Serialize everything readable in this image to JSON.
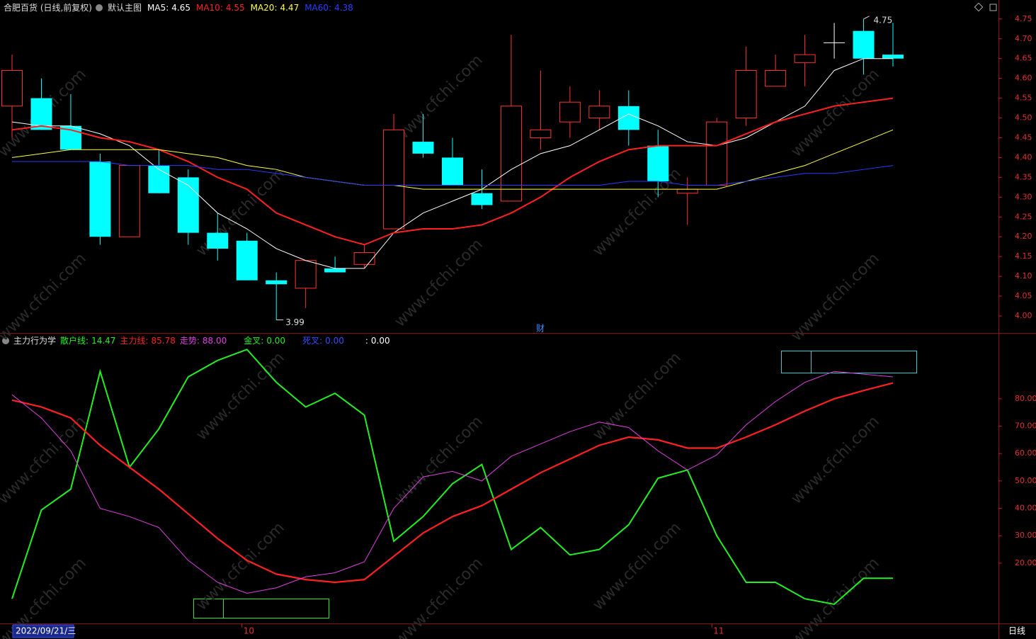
{
  "chart_data": [
    {
      "type": "candlestick",
      "title": "合肥百货 (日线,前复权)",
      "subtitle": "默认主图",
      "separator": ":",
      "annotation": "财",
      "up_color": "#ff3232",
      "down_color": "#00ffff",
      "flat_color": "#ffffff",
      "open": [
        4.53,
        4.55,
        4.48,
        4.39,
        4.2,
        4.38,
        4.35,
        4.21,
        4.19,
        4.09,
        4.07,
        4.12,
        4.13,
        4.22,
        4.44,
        4.4,
        4.31,
        4.29,
        4.45,
        4.49,
        4.5,
        4.53,
        4.43,
        4.31,
        4.33,
        4.5,
        4.58,
        4.64,
        4.69,
        4.72,
        4.66
      ],
      "high": [
        4.66,
        4.6,
        4.56,
        4.41,
        4.38,
        4.42,
        4.37,
        4.26,
        4.21,
        4.11,
        4.14,
        4.15,
        4.18,
        4.51,
        4.51,
        4.45,
        4.37,
        4.71,
        4.62,
        4.58,
        4.57,
        4.57,
        4.47,
        4.35,
        4.5,
        4.68,
        4.66,
        4.71,
        4.74,
        4.75,
        4.74
      ],
      "low": [
        4.45,
        4.47,
        4.42,
        4.18,
        4.2,
        4.31,
        4.18,
        4.14,
        4.09,
        3.99,
        4.02,
        4.11,
        4.12,
        4.22,
        4.4,
        4.33,
        4.27,
        4.29,
        4.42,
        4.45,
        4.47,
        4.43,
        4.3,
        4.23,
        4.33,
        4.48,
        4.58,
        4.58,
        4.65,
        4.61,
        4.63
      ],
      "close": [
        4.62,
        4.47,
        4.42,
        4.2,
        4.38,
        4.31,
        4.21,
        4.17,
        4.09,
        4.08,
        4.14,
        4.11,
        4.16,
        4.47,
        4.41,
        4.33,
        4.28,
        4.53,
        4.47,
        4.54,
        4.53,
        4.47,
        4.34,
        4.32,
        4.49,
        4.62,
        4.62,
        4.66,
        4.69,
        4.65,
        4.65
      ],
      "series": [
        {
          "name": "MA5",
          "color": "#ffffff",
          "last": 4.65,
          "values": [
            4.49,
            4.48,
            4.48,
            4.46,
            4.43,
            4.37,
            4.33,
            4.26,
            4.22,
            4.17,
            4.14,
            4.12,
            4.12,
            4.21,
            4.26,
            4.29,
            4.32,
            4.37,
            4.41,
            4.43,
            4.47,
            4.51,
            4.48,
            4.44,
            4.43,
            4.45,
            4.49,
            4.53,
            4.62,
            4.65,
            4.65
          ]
        },
        {
          "name": "MA10",
          "color": "#ff2020",
          "last": 4.55,
          "values": [
            4.47,
            4.48,
            4.47,
            4.45,
            4.44,
            4.42,
            4.39,
            4.35,
            4.32,
            4.26,
            4.23,
            4.2,
            4.18,
            4.21,
            4.22,
            4.22,
            4.23,
            4.26,
            4.3,
            4.35,
            4.39,
            4.42,
            4.43,
            4.43,
            4.43,
            4.46,
            4.49,
            4.51,
            4.53,
            4.54,
            4.55
          ]
        },
        {
          "name": "MA20",
          "color": "#ffff40",
          "last": 4.47,
          "values": [
            4.4,
            4.41,
            4.42,
            4.42,
            4.42,
            4.42,
            4.41,
            4.4,
            4.38,
            4.37,
            4.35,
            4.34,
            4.33,
            4.33,
            4.32,
            4.32,
            4.32,
            4.32,
            4.32,
            4.32,
            4.32,
            4.32,
            4.32,
            4.32,
            4.32,
            4.34,
            4.36,
            4.38,
            4.41,
            4.44,
            4.47
          ]
        },
        {
          "name": "MA60",
          "color": "#2a3cff",
          "last": 4.38,
          "values": [
            4.39,
            4.39,
            4.39,
            4.39,
            4.38,
            4.38,
            4.38,
            4.37,
            4.37,
            4.36,
            4.35,
            4.34,
            4.33,
            4.33,
            4.33,
            4.33,
            4.33,
            4.33,
            4.33,
            4.33,
            4.33,
            4.34,
            4.34,
            4.33,
            4.33,
            4.34,
            4.35,
            4.36,
            4.36,
            4.37,
            4.38
          ]
        }
      ],
      "ylim": [
        3.957,
        4.798
      ],
      "yticks": [
        {
          "value": 4.0,
          "label": "4.00"
        },
        {
          "value": 4.05,
          "label": "4.05"
        },
        {
          "value": 4.1,
          "label": "4.10"
        },
        {
          "value": 4.15,
          "label": "4.15"
        },
        {
          "value": 4.2,
          "label": "4.20"
        },
        {
          "value": 4.25,
          "label": "4.25"
        },
        {
          "value": 4.3,
          "label": "4.30"
        },
        {
          "value": 4.35,
          "label": "4.35"
        },
        {
          "value": 4.4,
          "label": "4.40"
        },
        {
          "value": 4.45,
          "label": "4.45"
        },
        {
          "value": 4.5,
          "label": "4.50"
        },
        {
          "value": 4.55,
          "label": "4.55"
        },
        {
          "value": 4.6,
          "label": "4.60"
        },
        {
          "value": 4.65,
          "label": "4.65"
        },
        {
          "value": 4.7,
          "label": "4.70"
        },
        {
          "value": 4.75,
          "label": "4.75"
        }
      ]
    },
    {
      "type": "line",
      "title": "主力行为学",
      "separator": ":",
      "categories": [
        null,
        null,
        null,
        null,
        null,
        null,
        null,
        null,
        "10",
        null,
        null,
        null,
        null,
        null,
        null,
        null,
        null,
        null,
        null,
        null,
        null,
        null,
        null,
        null,
        "11",
        null,
        null,
        null,
        null,
        null,
        null
      ],
      "cursor_date": "2022/09/21/三",
      "period": "日线",
      "watermark": "www.cfchi.com",
      "series": [
        {
          "name": "散户线",
          "color": "#22ee22",
          "last": 14.47,
          "values": [
            7,
            39.4,
            47,
            90,
            55,
            69,
            88,
            94,
            98,
            86,
            77,
            82,
            74,
            28,
            37,
            49,
            56,
            25,
            33,
            23,
            25,
            34,
            51,
            54,
            30,
            13,
            13,
            7,
            5,
            14.5,
            14.47
          ]
        },
        {
          "name": "主力线",
          "color": "#ff2020",
          "last": 85.78,
          "values": [
            79.5,
            77,
            73,
            63,
            55,
            47,
            38,
            29,
            21,
            16,
            14,
            13,
            14,
            22.5,
            31,
            37,
            41,
            47,
            53,
            58,
            63,
            66,
            65,
            62,
            62,
            66,
            70.5,
            75.5,
            80,
            83,
            85.78
          ]
        },
        {
          "name": "走势",
          "color": "#e040e0",
          "last": {
            "value": 88,
            "label": "88.00"
          },
          "values": [
            81.5,
            73,
            61,
            40,
            37,
            33,
            21,
            13,
            9,
            11,
            15,
            16.5,
            20.5,
            40,
            51.5,
            53.5,
            50,
            59,
            63.5,
            68,
            71.5,
            69.5,
            61,
            54,
            59.5,
            70.5,
            79,
            86,
            90,
            89,
            88
          ]
        }
      ],
      "indicators": [
        {
          "name": "金叉",
          "color": "#22ee22",
          "value": {
            "value": 0,
            "label": "0.00"
          }
        },
        {
          "name": "死叉",
          "color": "#3050ff",
          "value": {
            "value": 0,
            "label": "0.00"
          }
        },
        {
          "name": null,
          "color": "#ffffff",
          "value": {
            "value": 0,
            "label": "0.00"
          }
        }
      ],
      "ylim": [
        -2,
        103.5
      ],
      "yticks": [
        {
          "value": 20,
          "label": "20.00"
        },
        {
          "value": 30,
          "label": "30.00"
        },
        {
          "value": 40,
          "label": "40.00"
        },
        {
          "value": 50,
          "label": "50.00"
        },
        {
          "value": 60,
          "label": "60.00"
        },
        {
          "value": 70,
          "label": "70.00"
        },
        {
          "value": 80,
          "label": "80.00"
        }
      ]
    }
  ]
}
